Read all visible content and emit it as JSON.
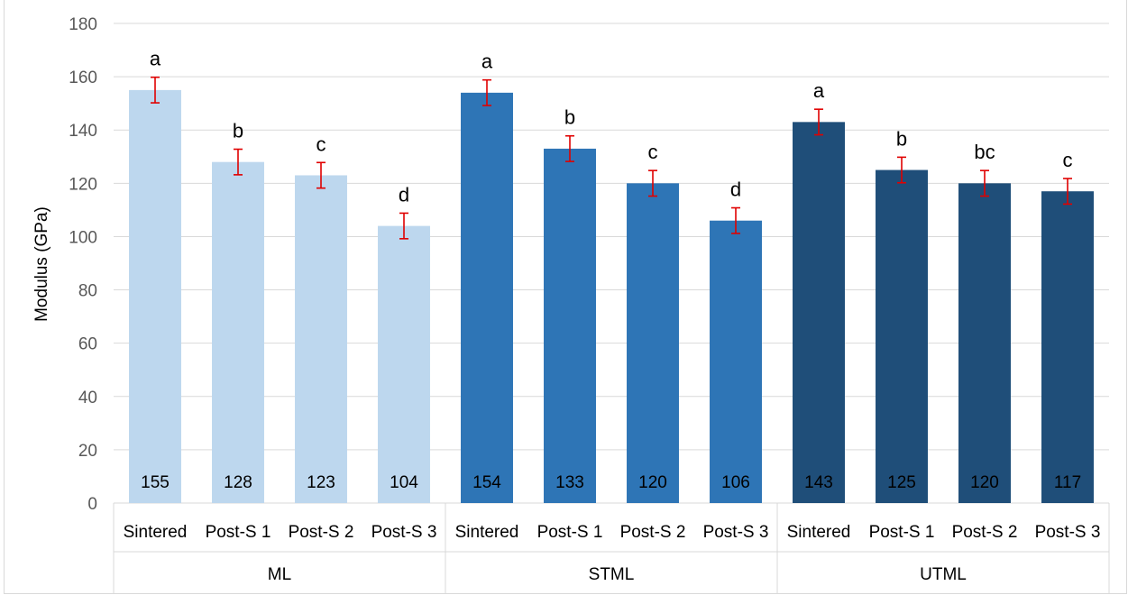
{
  "chart_data": {
    "type": "bar",
    "title": "",
    "xlabel": "",
    "ylabel": "Modulus (GPa)",
    "ylim": [
      0,
      180
    ],
    "yticks": [
      0,
      20,
      40,
      60,
      80,
      100,
      120,
      140,
      160,
      180
    ],
    "grid": true,
    "legend": "none",
    "groups": [
      {
        "name": "ML",
        "color": "#BDD7EE",
        "categories": [
          "Sintered",
          "Post-S 1",
          "Post-S 2",
          "Post-S 3"
        ],
        "values": [
          155,
          128,
          123,
          104
        ],
        "errors": [
          4.8,
          4.8,
          4.8,
          4.8
        ],
        "letters": [
          "a",
          "b",
          "c",
          "d"
        ]
      },
      {
        "name": "STML",
        "color": "#2E75B6",
        "categories": [
          "Sintered",
          "Post-S 1",
          "Post-S 2",
          "Post-S 3"
        ],
        "values": [
          154,
          133,
          120,
          106
        ],
        "errors": [
          4.8,
          4.8,
          4.8,
          4.8
        ],
        "letters": [
          "a",
          "b",
          "c",
          "d"
        ]
      },
      {
        "name": "UTML",
        "color": "#1F4E79",
        "categories": [
          "Sintered",
          "Post-S 1",
          "Post-S 2",
          "Post-S 3"
        ],
        "values": [
          143,
          125,
          120,
          117
        ],
        "errors": [
          4.8,
          4.8,
          4.8,
          4.8
        ],
        "letters": [
          "a",
          "b",
          "bc",
          "c"
        ]
      }
    ],
    "error_bar_color": "#E00000",
    "gridline_color": "#D9D9D9"
  }
}
